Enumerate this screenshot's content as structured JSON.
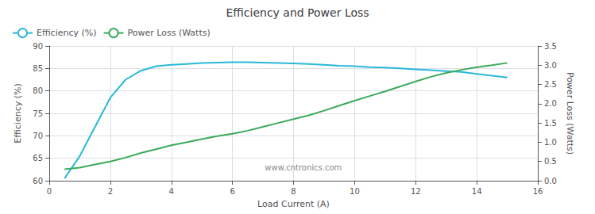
{
  "chart_data": {
    "type": "line",
    "title": "Efficiency and Power Loss",
    "xlabel": "Load Current (A)",
    "ylabel": "Efficiency (%)",
    "y2label": "Power Loss (Watts)",
    "x": [
      0.5,
      1.0,
      1.5,
      2.0,
      2.5,
      3.0,
      3.5,
      4.0,
      4.5,
      5.0,
      5.5,
      6.0,
      6.5,
      7.0,
      7.5,
      8.0,
      8.5,
      9.0,
      9.5,
      10.0,
      10.5,
      11.0,
      11.5,
      12.0,
      12.5,
      13.0,
      13.5,
      14.0,
      14.5,
      15.0
    ],
    "series": [
      {
        "name": "Efficiency (%)",
        "color": "#29b8d9",
        "values": [
          60.5,
          65.5,
          72.0,
          78.5,
          82.5,
          84.5,
          85.5,
          85.8,
          86.0,
          86.2,
          86.3,
          86.4,
          86.4,
          86.3,
          86.2,
          86.1,
          86.0,
          85.8,
          85.6,
          85.5,
          85.3,
          85.2,
          85.0,
          84.8,
          84.6,
          84.4,
          84.2,
          83.8,
          83.4,
          83.0
        ]
      },
      {
        "name": "Power Loss (Watts)",
        "color": "#3aaa5a",
        "axis": "y2",
        "values": [
          0.3,
          0.34,
          0.42,
          0.5,
          0.6,
          0.72,
          0.82,
          0.92,
          1.0,
          1.08,
          1.16,
          1.22,
          1.3,
          1.4,
          1.5,
          1.6,
          1.7,
          1.82,
          1.95,
          2.08,
          2.2,
          2.32,
          2.45,
          2.58,
          2.7,
          2.8,
          2.88,
          2.95,
          3.0,
          3.06
        ]
      }
    ],
    "xlim": [
      0,
      16
    ],
    "xticks": [
      0,
      2,
      4,
      6,
      8,
      10,
      12,
      14,
      16
    ],
    "ylim": [
      60,
      90
    ],
    "yticks": [
      60,
      65,
      70,
      75,
      80,
      85,
      90
    ],
    "y2lim": [
      0.0,
      3.5
    ],
    "y2ticks": [
      {
        "value": 0,
        "label": "0.0"
      },
      0.5,
      {
        "value": 1,
        "label": "1.0"
      },
      1.5,
      {
        "value": 2,
        "label": "2.0"
      },
      2.5,
      {
        "value": 3,
        "label": "3.0"
      },
      3.5
    ],
    "grid": true,
    "legend": "upper left",
    "annotations": [
      "www.cntronics.com"
    ]
  }
}
